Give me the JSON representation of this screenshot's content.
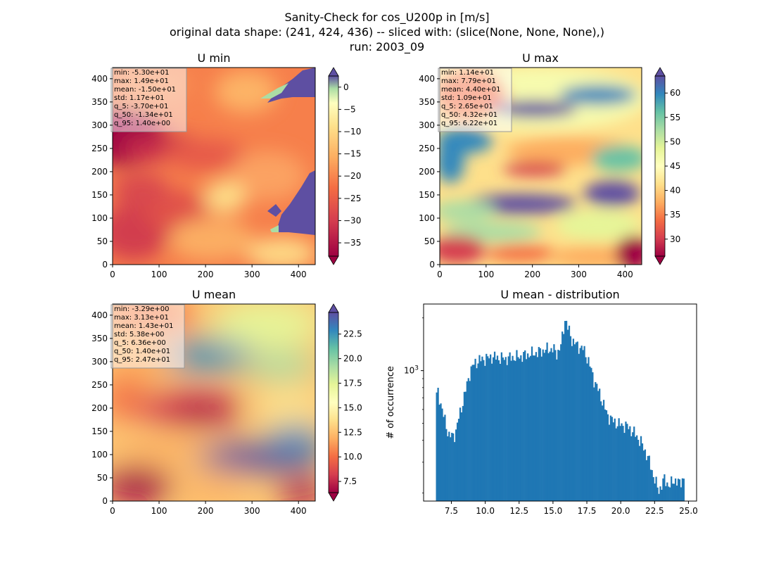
{
  "figure": {
    "title_lines": [
      "Sanity-Check for cos_U200p in [m/s]",
      "original data shape: (241, 424, 436) -- sliced with: (slice(None, None, None),)",
      "run: 2003_09"
    ]
  },
  "colormap": "Spectral",
  "chart_data": [
    {
      "type": "heatmap",
      "title": "U min",
      "xlim": [
        0,
        436
      ],
      "ylim": [
        0,
        424
      ],
      "xticks": [
        0,
        100,
        200,
        300,
        400
      ],
      "yticks": [
        0,
        50,
        100,
        150,
        200,
        250,
        300,
        350,
        400
      ],
      "colorbar": {
        "range": [
          -38,
          2.5
        ],
        "ticks": [
          0,
          -5,
          -10,
          -15,
          -20,
          -25,
          -30,
          -35
        ],
        "extend": "both"
      },
      "stats": [
        "min: -5.30e+01",
        "max: 1.49e+01",
        "mean: -1.50e+01",
        "std: 1.17e+01",
        "q_5: -3.70e+01",
        "q_50: -1.34e+01",
        "q_95: 1.40e+00"
      ]
    },
    {
      "type": "heatmap",
      "title": "U max",
      "xlim": [
        0,
        436
      ],
      "ylim": [
        0,
        424
      ],
      "xticks": [
        0,
        100,
        200,
        300,
        400
      ],
      "yticks": [
        0,
        50,
        100,
        150,
        200,
        250,
        300,
        350,
        400
      ],
      "colorbar": {
        "range": [
          26.5,
          63.5
        ],
        "ticks": [
          30,
          35,
          40,
          45,
          50,
          55,
          60
        ],
        "extend": "both"
      },
      "stats": [
        "min: 1.14e+01",
        "max: 7.79e+01",
        "mean: 4.40e+01",
        "std: 1.09e+01",
        "q_5: 2.65e+01",
        "q_50: 4.32e+01",
        "q_95: 6.22e+01"
      ]
    },
    {
      "type": "heatmap",
      "title": "U mean",
      "xlim": [
        0,
        436
      ],
      "ylim": [
        0,
        424
      ],
      "xticks": [
        0,
        100,
        200,
        300,
        400
      ],
      "yticks": [
        0,
        50,
        100,
        150,
        200,
        250,
        300,
        350,
        400
      ],
      "colorbar": {
        "range": [
          6.36,
          24.7
        ],
        "ticks": [
          7.5,
          10.0,
          12.5,
          15.0,
          17.5,
          20.0,
          22.5
        ],
        "extend": "both"
      },
      "stats": [
        "min: -3.29e+00",
        "max: 3.13e+01",
        "mean: 1.43e+01",
        "std: 5.38e+00",
        "q_5: 6.36e+00",
        "q_50: 1.40e+01",
        "q_95: 2.47e+01"
      ]
    },
    {
      "type": "bar",
      "title": "U mean - distribution",
      "ylabel": "# of occurrence",
      "yscale": "log",
      "xlim": [
        5.45,
        25.6
      ],
      "ylim": [
        180,
        2400
      ],
      "xticks": [
        7.5,
        10.0,
        12.5,
        15.0,
        17.5,
        20.0,
        22.5,
        25.0
      ],
      "yticks_major": [
        {
          "value": 1000,
          "label": "10^3"
        }
      ],
      "color": "#1f77b4",
      "profile": [
        [
          6.36,
          700
        ],
        [
          6.5,
          760
        ],
        [
          6.7,
          660
        ],
        [
          6.9,
          560
        ],
        [
          7.3,
          430
        ],
        [
          7.6,
          420
        ],
        [
          7.8,
          440
        ],
        [
          8.0,
          520
        ],
        [
          8.3,
          640
        ],
        [
          8.6,
          800
        ],
        [
          8.9,
          1000
        ],
        [
          9.2,
          1100
        ],
        [
          9.6,
          1150
        ],
        [
          10.0,
          1170
        ],
        [
          10.5,
          1200
        ],
        [
          11.0,
          1180
        ],
        [
          11.5,
          1170
        ],
        [
          12.0,
          1190
        ],
        [
          12.5,
          1200
        ],
        [
          13.0,
          1230
        ],
        [
          13.5,
          1250
        ],
        [
          14.0,
          1280
        ],
        [
          14.5,
          1320
        ],
        [
          15.0,
          1330
        ],
        [
          15.3,
          1250
        ],
        [
          15.6,
          1400
        ],
        [
          15.9,
          2000
        ],
        [
          16.1,
          1750
        ],
        [
          16.4,
          1500
        ],
        [
          16.8,
          1380
        ],
        [
          17.2,
          1340
        ],
        [
          17.6,
          1150
        ],
        [
          18.0,
          900
        ],
        [
          18.5,
          720
        ],
        [
          19.0,
          560
        ],
        [
          19.5,
          510
        ],
        [
          20.0,
          490
        ],
        [
          20.5,
          480
        ],
        [
          21.0,
          440
        ],
        [
          21.5,
          390
        ],
        [
          22.0,
          320
        ],
        [
          22.5,
          240
        ],
        [
          22.8,
          205
        ],
        [
          23.2,
          240
        ],
        [
          23.6,
          220
        ],
        [
          24.0,
          240
        ],
        [
          24.3,
          225
        ],
        [
          24.7,
          250
        ]
      ]
    }
  ]
}
